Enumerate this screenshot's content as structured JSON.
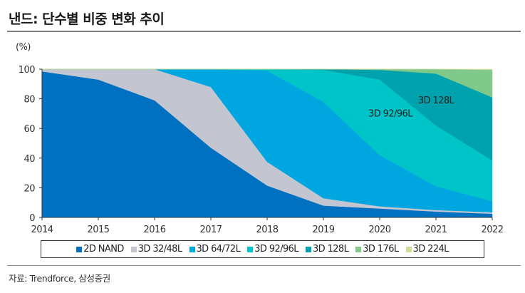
{
  "header": {
    "title": "낸드: 단수별 비중 변화 추이"
  },
  "footer": {
    "source": "자료: Trendforce, 삼성증권"
  },
  "chart_data": {
    "type": "area",
    "stacked": true,
    "title": "낸드: 단수별 비중 변화 추이",
    "ylabel": "(%)",
    "xlabel": "",
    "ylim": [
      0,
      100
    ],
    "yticks": [
      0,
      20,
      40,
      60,
      80,
      100
    ],
    "x": [
      "2014",
      "2015",
      "2016",
      "2017",
      "2018",
      "2019",
      "2020",
      "2021",
      "2022"
    ],
    "grid": false,
    "legend_position": "bottom",
    "series": [
      {
        "name": "2D NAND",
        "color": "#0070c0",
        "values": [
          98.5,
          93,
          79,
          47,
          21.5,
          8,
          6,
          4,
          2.5
        ]
      },
      {
        "name": "3D 32/48L",
        "color": "#c3c6d1",
        "values": [
          1.5,
          7,
          21,
          41,
          16,
          5,
          1.5,
          1,
          1
        ]
      },
      {
        "name": "3D 64/72L",
        "color": "#00a6e0",
        "values": [
          0,
          0,
          0,
          12,
          61.5,
          65,
          34.5,
          16,
          7.5
        ]
      },
      {
        "name": "3D 92/96L",
        "color": "#00c5c8",
        "values": [
          0,
          0,
          0,
          0,
          1,
          21.5,
          51,
          41,
          27.5
        ]
      },
      {
        "name": "3D 128L",
        "color": "#00a2ae",
        "values": [
          0,
          0,
          0,
          0,
          0,
          0.5,
          6.5,
          35,
          42.5
        ]
      },
      {
        "name": "3D 176L",
        "color": "#7fc98a",
        "values": [
          0,
          0,
          0,
          0,
          0,
          0,
          0.5,
          3,
          18.5
        ]
      },
      {
        "name": "3D 224L",
        "color": "#cfdc9a",
        "values": [
          0,
          0,
          0,
          0,
          0,
          0,
          0,
          0,
          0.5
        ]
      }
    ],
    "annotations": [
      {
        "text": "3D 92/96L",
        "series": "3D 92/96L",
        "x": "2020",
        "y": 68
      },
      {
        "text": "3D 128L",
        "series": "3D 128L",
        "x": "2021",
        "y": 77
      }
    ]
  }
}
